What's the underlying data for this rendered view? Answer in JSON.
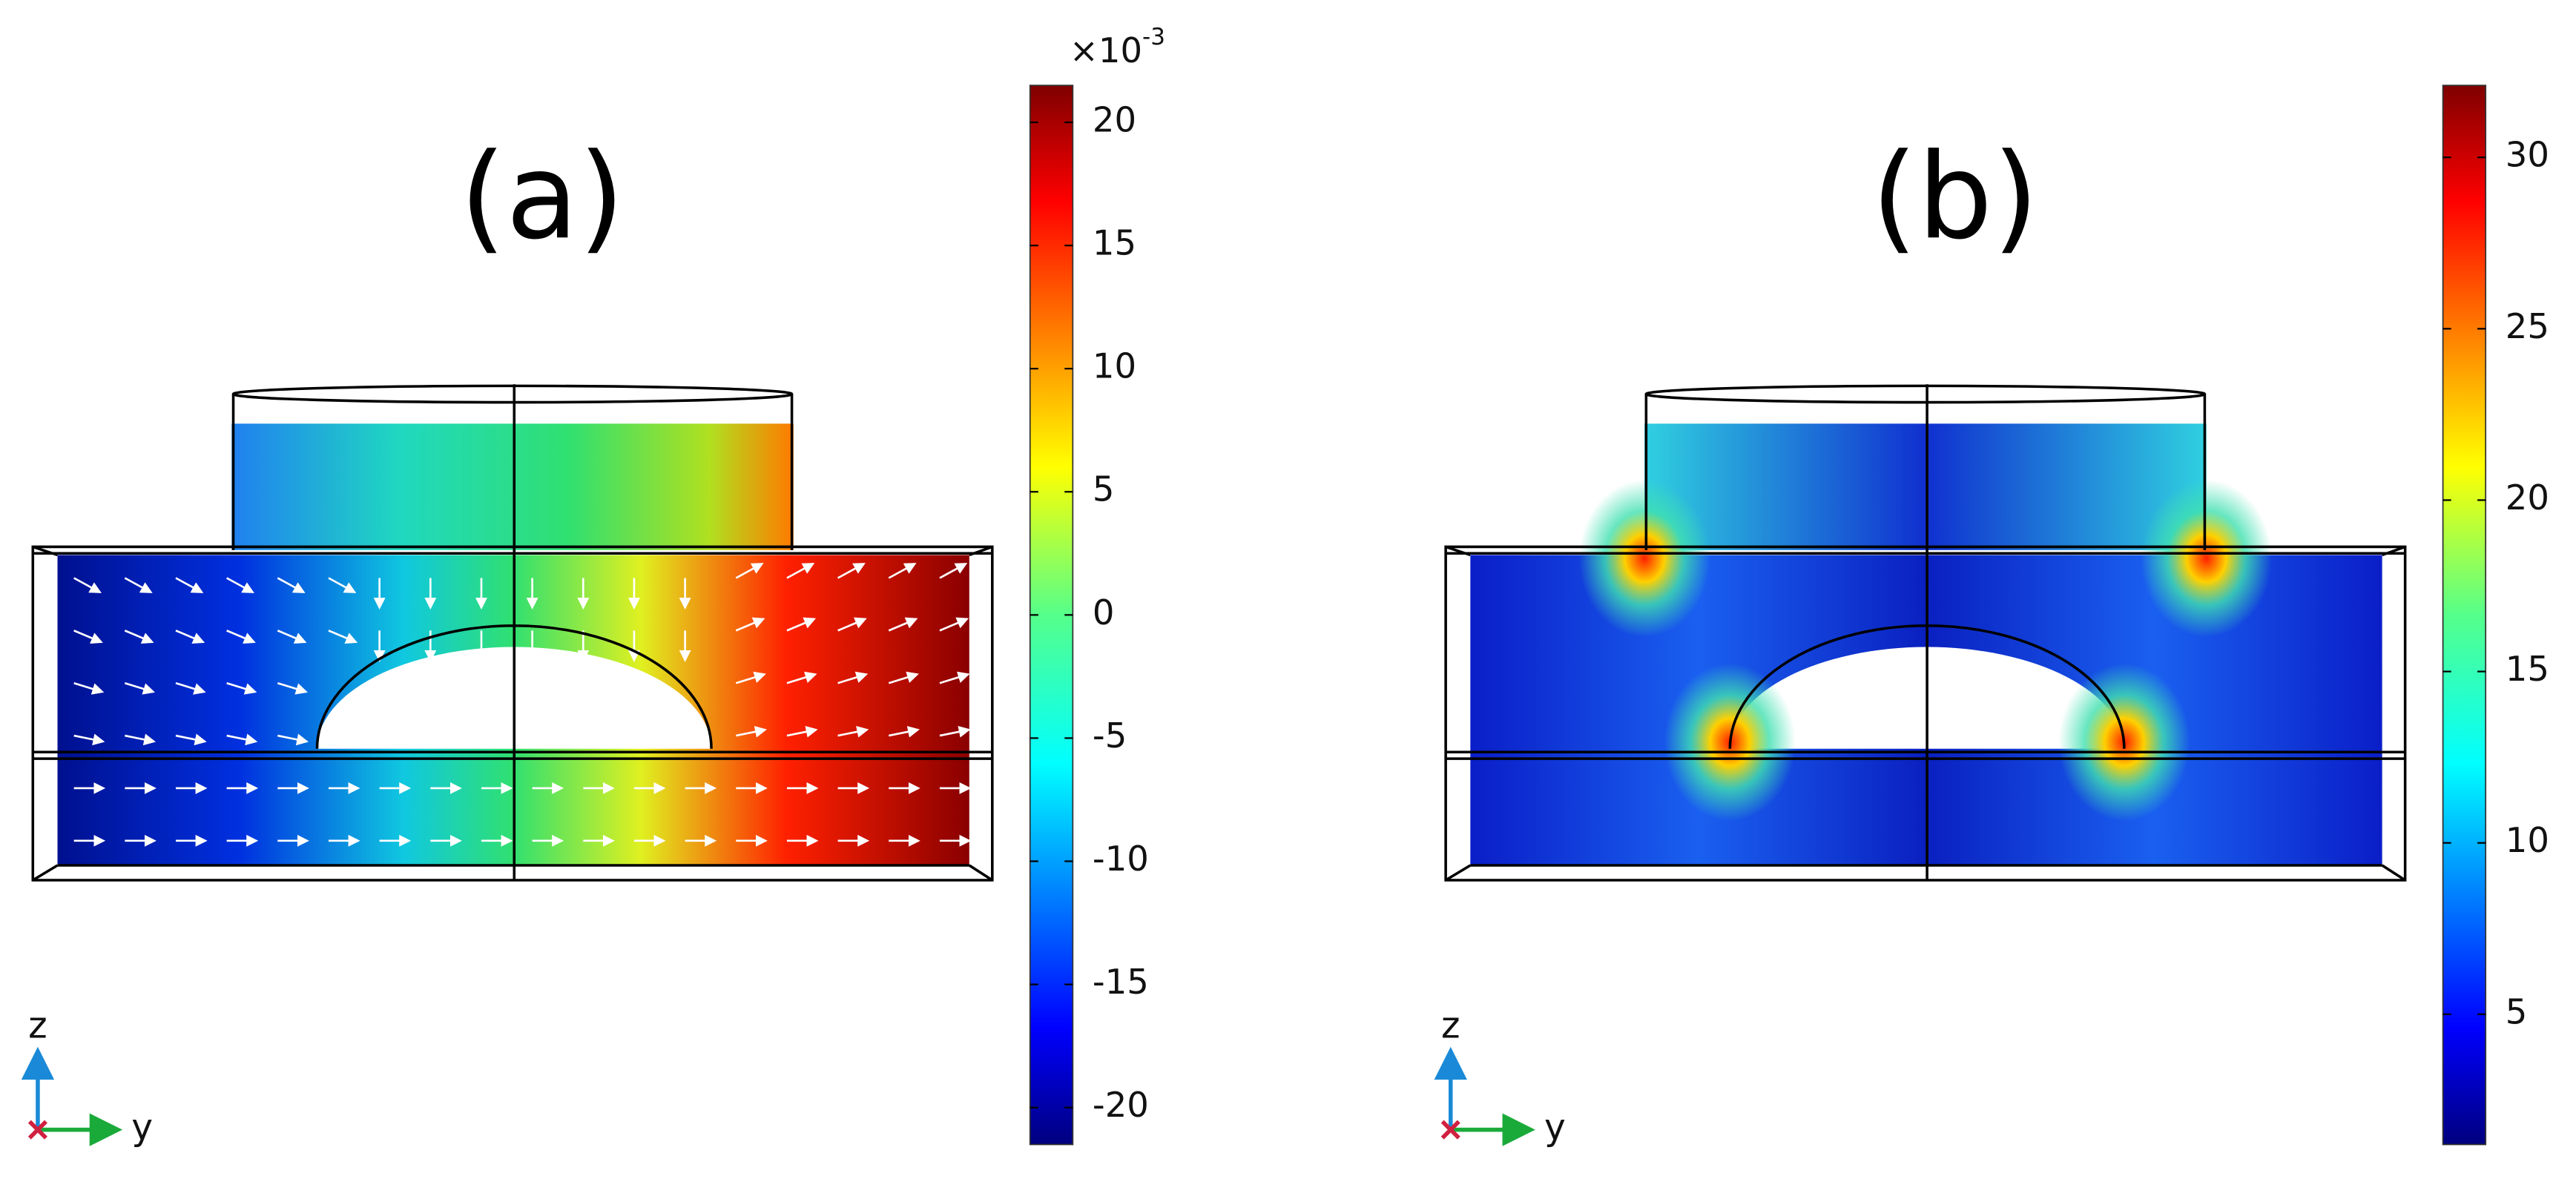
{
  "panels": [
    {
      "label": "(a)",
      "colorbar": {
        "multiplier": "×10",
        "exponent": "-3",
        "lim": [
          -21.5,
          21.5
        ],
        "ticks": [
          20,
          15,
          10,
          5,
          0,
          -5,
          -10,
          -15,
          -20
        ]
      },
      "triad": {
        "vertical": "z",
        "horizontal": "y"
      }
    },
    {
      "label": "(b)",
      "colorbar": {
        "lim": [
          1.2,
          32.1
        ],
        "ticks": [
          30,
          25,
          20,
          15,
          10,
          5
        ]
      },
      "triad": {
        "vertical": "z",
        "horizontal": "y"
      }
    }
  ]
}
